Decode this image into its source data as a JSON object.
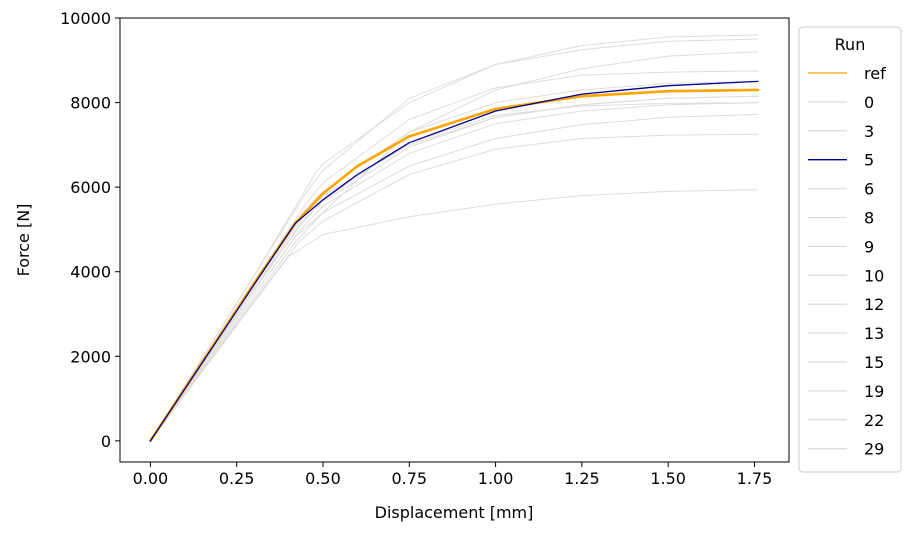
{
  "chart_data": {
    "type": "line",
    "title": "",
    "xlabel": "Displacement [mm]",
    "ylabel": "Force [N]",
    "xlim": [
      -0.088,
      1.85
    ],
    "ylim": [
      -500,
      10000
    ],
    "xticks": [
      0.0,
      0.25,
      0.5,
      0.75,
      1.0,
      1.25,
      1.5,
      1.75
    ],
    "xtick_labels": [
      "0.00",
      "0.25",
      "0.50",
      "0.75",
      "1.00",
      "1.25",
      "1.50",
      "1.75"
    ],
    "yticks": [
      0,
      2000,
      4000,
      6000,
      8000,
      10000
    ],
    "ytick_labels": [
      "0",
      "2000",
      "4000",
      "6000",
      "8000",
      "10000"
    ],
    "grid": false,
    "legend": {
      "title": "Run",
      "placement": "outside-right"
    },
    "colors": {
      "ref": "#ffa500",
      "highlight": "#00008b",
      "others": "#dddddd"
    },
    "series": [
      {
        "name": "0",
        "color": "#dddddd",
        "x": [
          0,
          0.1,
          0.2,
          0.3,
          0.42,
          0.5,
          0.75,
          1.0,
          1.25,
          1.5,
          1.76
        ],
        "y": [
          0,
          1150,
          2300,
          3450,
          4830,
          5400,
          6500,
          7150,
          7480,
          7650,
          7720
        ]
      },
      {
        "name": "3",
        "color": "#dddddd",
        "x": [
          0,
          0.1,
          0.2,
          0.3,
          0.4,
          0.5,
          0.75,
          1.0,
          1.25,
          1.5,
          1.76
        ],
        "y": [
          0,
          1090,
          2180,
          3270,
          4360,
          4880,
          5300,
          5600,
          5800,
          5900,
          5940
        ]
      },
      {
        "name": "6",
        "color": "#dddddd",
        "x": [
          0,
          0.1,
          0.2,
          0.3,
          0.45,
          0.5,
          0.75,
          1.0,
          1.25,
          1.5,
          1.76
        ],
        "y": [
          0,
          1220,
          2440,
          3660,
          5490,
          5900,
          7300,
          8000,
          8300,
          8450,
          8500
        ]
      },
      {
        "name": "8",
        "color": "#dddddd",
        "x": [
          0,
          0.1,
          0.2,
          0.3,
          0.45,
          0.5,
          0.75,
          1.0,
          1.25,
          1.5,
          1.76
        ],
        "y": [
          0,
          1200,
          2400,
          3600,
          5400,
          5800,
          7000,
          7650,
          7950,
          8100,
          8150
        ]
      },
      {
        "name": "9",
        "color": "#dddddd",
        "x": [
          0,
          0.1,
          0.2,
          0.3,
          0.43,
          0.5,
          0.75,
          1.0,
          1.25,
          1.5,
          1.76
        ],
        "y": [
          0,
          1100,
          2200,
          3300,
          4700,
          5200,
          6300,
          6900,
          7150,
          7230,
          7250
        ]
      },
      {
        "name": "10",
        "color": "#dddddd",
        "x": [
          0,
          0.1,
          0.2,
          0.3,
          0.43,
          0.5,
          0.75,
          1.0,
          1.25,
          1.5,
          1.76
        ],
        "y": [
          0,
          1150,
          2300,
          3450,
          4950,
          5550,
          6800,
          7500,
          7800,
          7950,
          8000
        ]
      },
      {
        "name": "12",
        "color": "#dddddd",
        "x": [
          0,
          0.1,
          0.2,
          0.3,
          0.45,
          0.5,
          0.75,
          1.0,
          1.25,
          1.5,
          1.76
        ],
        "y": [
          0,
          1300,
          2600,
          3900,
          5850,
          6400,
          8100,
          8900,
          9250,
          9450,
          9500
        ]
      },
      {
        "name": "13",
        "color": "#dddddd",
        "x": [
          0,
          0.1,
          0.2,
          0.3,
          0.45,
          0.5,
          0.75,
          1.0,
          1.25,
          1.5,
          1.76
        ],
        "y": [
          0,
          1250,
          2500,
          3750,
          5600,
          6100,
          7600,
          8350,
          8650,
          8720,
          8750
        ]
      },
      {
        "name": "15",
        "color": "#dddddd",
        "x": [
          0,
          0.1,
          0.2,
          0.3,
          0.48,
          0.5,
          0.75,
          1.0,
          1.25,
          1.5,
          1.76
        ],
        "y": [
          0,
          1300,
          2600,
          3900,
          6350,
          6550,
          8000,
          8900,
          9350,
          9550,
          9600
        ]
      },
      {
        "name": "19",
        "color": "#dddddd",
        "x": [
          0,
          0.1,
          0.2,
          0.3,
          0.44,
          0.5,
          0.75,
          1.0,
          1.25,
          1.5,
          1.76
        ],
        "y": [
          0,
          1180,
          2360,
          3540,
          5200,
          5650,
          6950,
          7650,
          7950,
          8100,
          8150
        ]
      },
      {
        "name": "22",
        "color": "#dddddd",
        "x": [
          0,
          0.1,
          0.2,
          0.3,
          0.42,
          0.5,
          0.75,
          1.0,
          1.25,
          1.5,
          1.76
        ],
        "y": [
          0,
          1120,
          2240,
          3360,
          4700,
          5400,
          7300,
          8300,
          8800,
          9100,
          9200
        ]
      },
      {
        "name": "29",
        "color": "#dddddd",
        "x": [
          0,
          0.1,
          0.2,
          0.3,
          0.43,
          0.5,
          0.75,
          1.0,
          1.25,
          1.5,
          1.76
        ],
        "y": [
          0,
          1200,
          2400,
          3600,
          5050,
          5700,
          7050,
          7700,
          7920,
          7980,
          8000
        ]
      },
      {
        "name": "ref",
        "color": "#ffa500",
        "x": [
          0,
          0.1,
          0.2,
          0.3,
          0.42,
          0.5,
          0.6,
          0.75,
          1.0,
          1.25,
          1.5,
          1.76
        ],
        "y": [
          0,
          1240,
          2480,
          3720,
          5150,
          5850,
          6500,
          7200,
          7850,
          8150,
          8270,
          8300
        ]
      },
      {
        "name": "5",
        "color": "#00008b",
        "x": [
          0,
          0.1,
          0.2,
          0.3,
          0.42,
          0.5,
          0.6,
          0.75,
          1.0,
          1.25,
          1.5,
          1.76
        ],
        "y": [
          0,
          1230,
          2460,
          3690,
          5150,
          5700,
          6300,
          7050,
          7800,
          8200,
          8400,
          8500
        ]
      }
    ],
    "legend_order": [
      "ref",
      "0",
      "3",
      "5",
      "6",
      "8",
      "9",
      "10",
      "12",
      "13",
      "15",
      "19",
      "22",
      "29"
    ]
  }
}
